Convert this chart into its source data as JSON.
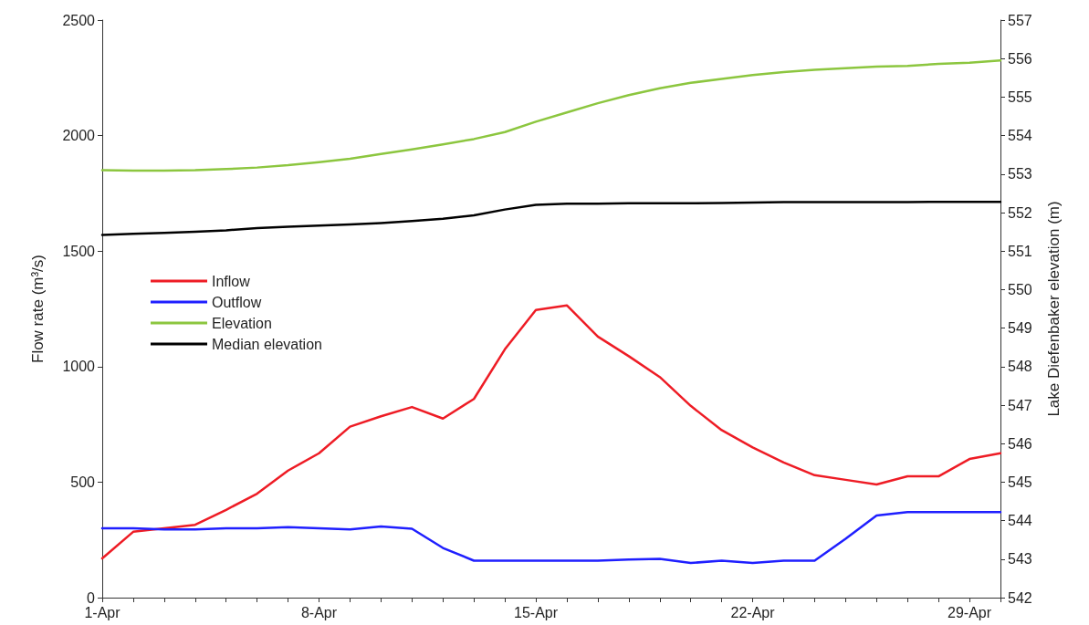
{
  "chart_data": {
    "type": "line",
    "categories": [
      "1-Apr",
      null,
      null,
      null,
      null,
      null,
      null,
      "8-Apr",
      null,
      null,
      null,
      null,
      null,
      null,
      "15-Apr",
      null,
      null,
      null,
      null,
      null,
      null,
      "22-Apr",
      null,
      null,
      null,
      null,
      null,
      null,
      "29-Apr",
      null
    ],
    "series": [
      {
        "name": "Inflow",
        "color": "#ee1c25",
        "values": [
          170,
          285,
          300,
          315,
          380,
          450,
          550,
          625,
          740,
          785,
          825,
          775,
          860,
          1075,
          1245,
          1265,
          1130,
          1045,
          955,
          830,
          725,
          650,
          585,
          530,
          510,
          490,
          525,
          525,
          600,
          625
        ]
      },
      {
        "name": "Outflow",
        "color": "#1f1fff",
        "values": [
          300,
          300,
          295,
          295,
          300,
          300,
          305,
          300,
          295,
          308,
          298,
          215,
          160,
          160,
          160,
          160,
          160,
          165,
          168,
          150,
          160,
          150,
          160,
          160,
          255,
          355,
          370,
          370,
          370,
          370
        ]
      },
      {
        "name": "Elevation",
        "color": "#8cc63f",
        "axis": "y2",
        "values": [
          553.1,
          553.09,
          553.09,
          553.1,
          553.13,
          553.17,
          553.23,
          553.31,
          553.4,
          553.52,
          553.64,
          553.77,
          553.91,
          554.09,
          554.36,
          554.6,
          554.84,
          555.05,
          555.23,
          555.37,
          555.47,
          555.57,
          555.65,
          555.71,
          555.75,
          555.79,
          555.81,
          555.86,
          555.89,
          555.95
        ]
      },
      {
        "name": "Median elevation",
        "color": "#000000",
        "axis": "y2",
        "values": [
          551.42,
          551.45,
          551.47,
          551.5,
          551.54,
          551.6,
          551.63,
          551.66,
          551.69,
          551.73,
          551.78,
          551.84,
          551.93,
          552.08,
          552.2,
          552.23,
          552.23,
          552.24,
          552.24,
          552.24,
          552.25,
          552.26,
          552.27,
          552.27,
          552.27,
          552.27,
          552.27,
          552.28,
          552.28,
          552.28
        ]
      }
    ],
    "ylabel": "Flow rate (m³/s)",
    "y2label": "Lake Diefenbaker elevation (m)",
    "ylim": [
      0,
      2500
    ],
    "yticks": [
      0,
      500,
      1000,
      1500,
      2000,
      2500
    ],
    "y2lim": [
      542,
      557
    ],
    "y2ticks": [
      542,
      543,
      544,
      545,
      546,
      547,
      548,
      549,
      550,
      551,
      552,
      553,
      554,
      555,
      556,
      557
    ],
    "legend": "left",
    "grid": false,
    "marker": "none",
    "line_style": "solid"
  }
}
